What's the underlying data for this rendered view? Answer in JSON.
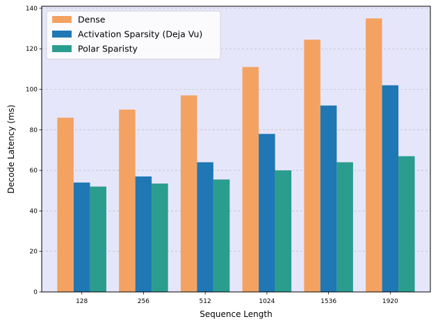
{
  "chart_data": {
    "type": "bar",
    "title": "",
    "xlabel": "Sequence Length",
    "ylabel": "Decode Latency (ms)",
    "categories": [
      "128",
      "256",
      "512",
      "1024",
      "1536",
      "1920"
    ],
    "ylim": [
      0,
      141
    ],
    "yticks": [
      0,
      20,
      40,
      60,
      80,
      100,
      120,
      140
    ],
    "grid": "y-dashed",
    "legend_position": "top-left",
    "series": [
      {
        "name": "Dense",
        "color": "#F4A261",
        "values": [
          86,
          90,
          97,
          111,
          124.5,
          135
        ]
      },
      {
        "name": "Activation Sparsity (Deja Vu)",
        "color": "#1F77B4",
        "values": [
          54,
          57,
          64,
          78,
          92,
          102
        ]
      },
      {
        "name": "Polar Sparisty",
        "color": "#2A9D8F",
        "values": [
          52,
          53.5,
          55.5,
          60,
          64,
          67
        ]
      }
    ],
    "background_color": "#E6E6FA"
  }
}
